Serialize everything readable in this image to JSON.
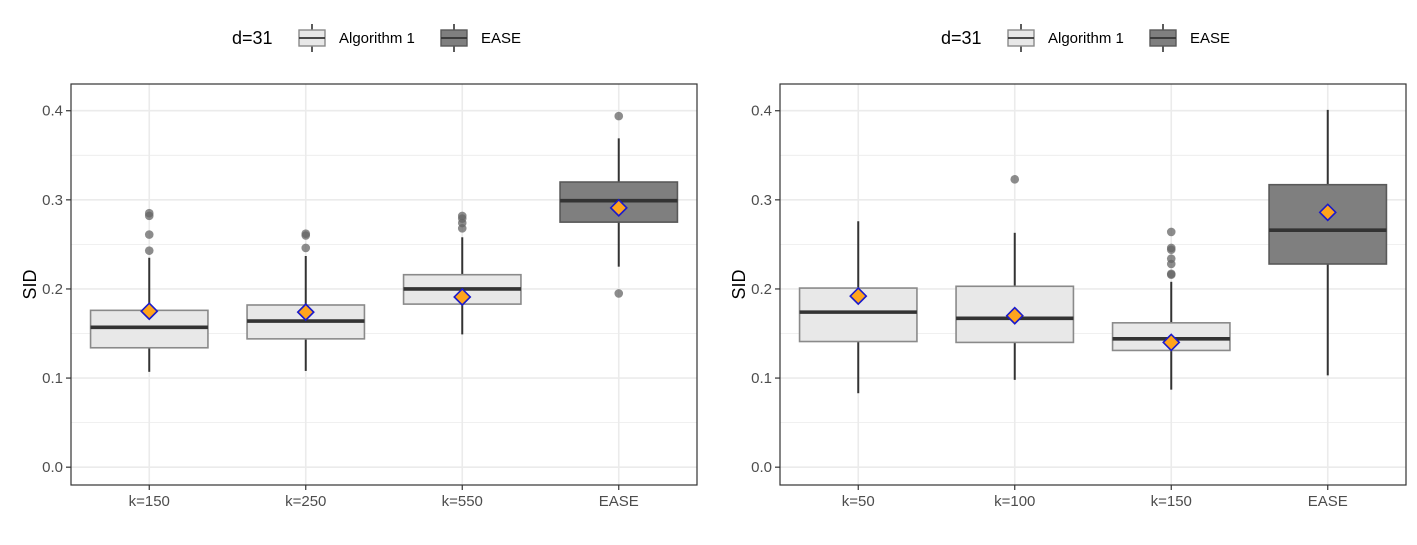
{
  "colors": {
    "algorithm_fill": "#e8e8e8",
    "algorithm_stroke": "#8a8a8a",
    "ease_fill": "#7f7f7f",
    "ease_stroke": "#595959",
    "whisker": "#333333",
    "median": "#333333",
    "outlier": "#666666",
    "mean_fill": "#ffa41c",
    "mean_stroke": "#1a1acc",
    "grid": "#ebebeb",
    "panel_border": "#333333"
  },
  "chart_data": [
    {
      "type": "box",
      "legend": {
        "title": "d=31",
        "position": "top",
        "entries": [
          "Algorithm 1",
          "EASE"
        ]
      },
      "ylabel": "SID",
      "xlabel": "",
      "ylim": [
        -0.02,
        0.43
      ],
      "yticks": [
        0.0,
        0.1,
        0.2,
        0.3,
        0.4
      ],
      "ytick_labels": [
        "0.0",
        "0.1",
        "0.2",
        "0.3",
        "0.4"
      ],
      "grid": true,
      "categories": [
        "k=150",
        "k=250",
        "k=550",
        "EASE"
      ],
      "boxes": [
        {
          "group": "Algorithm 1",
          "whisker_low": 0.107,
          "q1": 0.134,
          "median": 0.157,
          "q3": 0.176,
          "whisker_high": 0.235,
          "mean": 0.175,
          "outliers": [
            0.243,
            0.261,
            0.282,
            0.285
          ]
        },
        {
          "group": "Algorithm 1",
          "whisker_low": 0.108,
          "q1": 0.144,
          "median": 0.164,
          "q3": 0.182,
          "whisker_high": 0.237,
          "mean": 0.174,
          "outliers": [
            0.246,
            0.26,
            0.262
          ]
        },
        {
          "group": "Algorithm 1",
          "whisker_low": 0.149,
          "q1": 0.183,
          "median": 0.2,
          "q3": 0.216,
          "whisker_high": 0.258,
          "mean": 0.191,
          "outliers": [
            0.268,
            0.274,
            0.279,
            0.282
          ]
        },
        {
          "group": "EASE",
          "whisker_low": 0.225,
          "q1": 0.275,
          "median": 0.299,
          "q3": 0.32,
          "whisker_high": 0.369,
          "mean": 0.291,
          "outliers": [
            0.195,
            0.394
          ]
        }
      ]
    },
    {
      "type": "box",
      "legend": {
        "title": "d=31",
        "position": "top",
        "entries": [
          "Algorithm 1",
          "EASE"
        ]
      },
      "ylabel": "SID",
      "xlabel": "",
      "ylim": [
        -0.02,
        0.43
      ],
      "yticks": [
        0.0,
        0.1,
        0.2,
        0.3,
        0.4
      ],
      "ytick_labels": [
        "0.0",
        "0.1",
        "0.2",
        "0.3",
        "0.4"
      ],
      "grid": true,
      "categories": [
        "k=50",
        "k=100",
        "k=150",
        "EASE"
      ],
      "boxes": [
        {
          "group": "Algorithm 1",
          "whisker_low": 0.083,
          "q1": 0.141,
          "median": 0.174,
          "q3": 0.201,
          "whisker_high": 0.276,
          "mean": 0.192,
          "outliers": []
        },
        {
          "group": "Algorithm 1",
          "whisker_low": 0.098,
          "q1": 0.14,
          "median": 0.167,
          "q3": 0.203,
          "whisker_high": 0.263,
          "mean": 0.17,
          "outliers": [
            0.323
          ]
        },
        {
          "group": "Algorithm 1",
          "whisker_low": 0.087,
          "q1": 0.131,
          "median": 0.144,
          "q3": 0.162,
          "whisker_high": 0.208,
          "mean": 0.14,
          "outliers": [
            0.216,
            0.217,
            0.228,
            0.234,
            0.244,
            0.246,
            0.264
          ]
        },
        {
          "group": "EASE",
          "whisker_low": 0.103,
          "q1": 0.228,
          "median": 0.266,
          "q3": 0.317,
          "whisker_high": 0.401,
          "mean": 0.286,
          "outliers": []
        }
      ]
    }
  ]
}
